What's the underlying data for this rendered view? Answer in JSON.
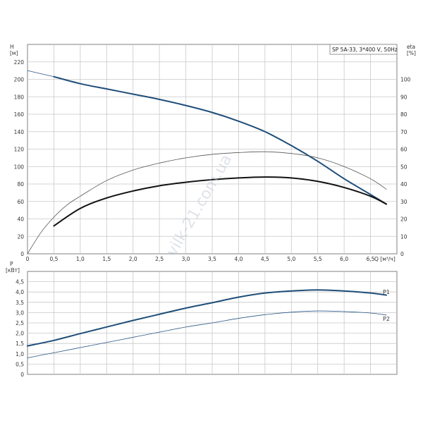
{
  "chart_data": [
    {
      "type": "line",
      "legend_box": "SP 5A-33, 3*400 V, 50Hz",
      "xlabel": "Q [м³/ч]",
      "ylabel_left": [
        "H",
        "[м]"
      ],
      "ylabel_right": [
        "eta",
        "[%]"
      ],
      "xlim": [
        0,
        7.0
      ],
      "ylim_left": [
        0,
        240
      ],
      "ylim_right": [
        0,
        120
      ],
      "x_ticks": [
        "0",
        "0,5",
        "1,0",
        "1,5",
        "2,0",
        "2,5",
        "3,0",
        "3,5",
        "4,0",
        "4,5",
        "5,0",
        "5,5",
        "6,0",
        "6,5"
      ],
      "y_left_ticks": [
        "0",
        "20",
        "40",
        "60",
        "80",
        "100",
        "120",
        "140",
        "160",
        "180",
        "200",
        "220"
      ],
      "y_right_ticks": [
        "0",
        "10",
        "20",
        "30",
        "40",
        "50",
        "60",
        "70",
        "80",
        "90",
        "100"
      ],
      "grid": true,
      "series": [
        {
          "axis": "left",
          "style": "thin",
          "x": [
            0,
            0.5
          ],
          "y": [
            210,
            203
          ]
        },
        {
          "axis": "left",
          "style": "thick",
          "x": [
            0.5,
            1.0,
            1.5,
            2.0,
            2.5,
            3.0,
            3.5,
            4.0,
            4.5,
            5.0,
            5.5,
            6.0,
            6.5,
            6.8
          ],
          "y": [
            203,
            195,
            189,
            183,
            177,
            170,
            162,
            152,
            140,
            124,
            106,
            86,
            68,
            57
          ]
        },
        {
          "axis": "right",
          "style": "thin",
          "x": [
            0,
            0.25,
            0.5,
            0.75,
            1.0,
            1.5,
            2.0,
            2.5,
            3.0,
            3.5,
            4.0,
            4.5,
            5.0,
            5.5,
            6.0,
            6.5,
            6.8
          ],
          "y": [
            0,
            12,
            21,
            28,
            33,
            42,
            48,
            52,
            55,
            57,
            58,
            58.5,
            57.5,
            55,
            50,
            43,
            37
          ]
        },
        {
          "axis": "right",
          "style": "thick",
          "x": [
            0.5,
            1.0,
            1.5,
            2.0,
            2.5,
            3.0,
            3.5,
            4.0,
            4.5,
            5.0,
            5.5,
            6.0,
            6.5,
            6.8
          ],
          "y": [
            16,
            26,
            32,
            36,
            39,
            41,
            42.5,
            43.5,
            44,
            43.5,
            41.5,
            38,
            33,
            28.5
          ]
        }
      ]
    },
    {
      "type": "line",
      "ylabel": [
        "P",
        "[кВт]"
      ],
      "xlim": [
        0,
        7.0
      ],
      "ylim": [
        0,
        5.0
      ],
      "y_ticks": [
        "0",
        "0,5",
        "1,0",
        "1,5",
        "2,0",
        "2,5",
        "3,0",
        "3,5",
        "4,0",
        "4,5"
      ],
      "grid": true,
      "series": [
        {
          "name": "P1",
          "style": "thick",
          "x": [
            0,
            0.5,
            1.0,
            1.5,
            2.0,
            2.5,
            3.0,
            3.5,
            4.0,
            4.5,
            5.0,
            5.5,
            6.0,
            6.5,
            6.8
          ],
          "y": [
            1.38,
            1.65,
            1.98,
            2.3,
            2.62,
            2.92,
            3.22,
            3.48,
            3.75,
            3.95,
            4.05,
            4.1,
            4.05,
            3.95,
            3.85
          ]
        },
        {
          "name": "P2",
          "style": "thin",
          "x": [
            0,
            0.5,
            1.0,
            1.5,
            2.0,
            2.5,
            3.0,
            3.5,
            4.0,
            4.5,
            5.0,
            5.5,
            6.0,
            6.5,
            6.8
          ],
          "y": [
            0.8,
            1.05,
            1.3,
            1.55,
            1.8,
            2.05,
            2.3,
            2.5,
            2.72,
            2.9,
            3.02,
            3.08,
            3.05,
            2.98,
            2.88
          ]
        }
      ]
    }
  ],
  "watermark": "vilk-21.com.ua",
  "colors": {
    "grid": "#c8c8c8",
    "frame": "#808080",
    "blue": "#1f4e79",
    "black": "#111111",
    "thin": "#555555",
    "thinBlue": "#2a5686"
  }
}
